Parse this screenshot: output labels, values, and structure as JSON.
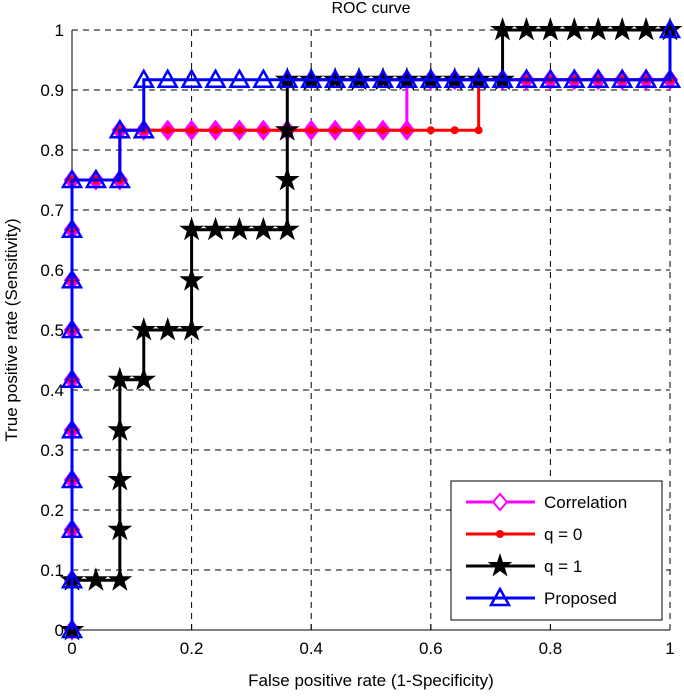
{
  "chart_data": {
    "type": "line",
    "title": "ROC curve",
    "xlabel": "False positive rate (1-Specificity)",
    "ylabel": "True positive rate (Sensitivity)",
    "xlim": [
      0,
      1
    ],
    "ylim": [
      0,
      1
    ],
    "grid": true,
    "legend_position": "bottom-right",
    "x_ticks": [
      0,
      0.2,
      0.4,
      0.6,
      0.8,
      1
    ],
    "x_tick_labels": [
      "0",
      "0.2",
      "0.4",
      "0.6",
      "0.8",
      "1"
    ],
    "y_ticks": [
      0,
      0.1,
      0.2,
      0.3,
      0.4,
      0.5,
      0.6,
      0.7,
      0.8,
      0.9,
      1
    ],
    "y_tick_labels": [
      "0",
      "0.1",
      "0.2",
      "0.3",
      "0.4",
      "0.5",
      "0.6",
      "0.7",
      "0.8",
      "0.9",
      "1"
    ],
    "series": [
      {
        "name": "Correlation",
        "color": "#ff00ff",
        "marker": "diamond",
        "x": [
          0,
          0,
          0,
          0,
          0,
          0,
          0,
          0,
          0,
          0,
          0.04,
          0.08,
          0.08,
          0.12,
          0.16,
          0.2,
          0.24,
          0.28,
          0.32,
          0.36,
          0.4,
          0.44,
          0.48,
          0.52,
          0.56,
          0.56,
          0.6,
          0.64,
          0.68,
          0.72,
          0.76,
          0.8,
          0.84,
          0.88,
          0.92,
          0.96,
          1
        ],
        "y": [
          0,
          0.083,
          0.167,
          0.25,
          0.333,
          0.417,
          0.5,
          0.583,
          0.667,
          0.75,
          0.75,
          0.75,
          0.833,
          0.833,
          0.833,
          0.833,
          0.833,
          0.833,
          0.833,
          0.833,
          0.833,
          0.833,
          0.833,
          0.833,
          0.833,
          0.917,
          0.917,
          0.917,
          0.917,
          0.917,
          0.917,
          0.917,
          0.917,
          0.917,
          0.917,
          0.917,
          0.917
        ]
      },
      {
        "name": "q = 0",
        "color": "#ff0000",
        "marker": "dot",
        "x": [
          0,
          0,
          0,
          0,
          0,
          0,
          0,
          0,
          0,
          0,
          0.04,
          0.08,
          0.08,
          0.12,
          0.16,
          0.2,
          0.24,
          0.28,
          0.32,
          0.36,
          0.4,
          0.44,
          0.48,
          0.52,
          0.56,
          0.6,
          0.64,
          0.68,
          0.68,
          0.72,
          0.76,
          0.8,
          0.84,
          0.88,
          0.92,
          0.96,
          1
        ],
        "y": [
          0,
          0.083,
          0.167,
          0.25,
          0.333,
          0.417,
          0.5,
          0.583,
          0.667,
          0.75,
          0.75,
          0.75,
          0.833,
          0.833,
          0.833,
          0.833,
          0.833,
          0.833,
          0.833,
          0.833,
          0.833,
          0.833,
          0.833,
          0.833,
          0.833,
          0.833,
          0.833,
          0.833,
          0.917,
          0.917,
          0.917,
          0.917,
          0.917,
          0.917,
          0.917,
          0.917,
          0.917
        ]
      },
      {
        "name": "q = 1",
        "color": "#000000",
        "marker": "star",
        "x": [
          0,
          0,
          0.04,
          0.08,
          0.08,
          0.08,
          0.08,
          0.08,
          0.12,
          0.12,
          0.16,
          0.2,
          0.2,
          0.2,
          0.24,
          0.28,
          0.32,
          0.36,
          0.36,
          0.36,
          0.36,
          0.4,
          0.44,
          0.48,
          0.52,
          0.56,
          0.6,
          0.64,
          0.68,
          0.72,
          0.72,
          0.76,
          0.8,
          0.84,
          0.88,
          0.92,
          0.96,
          1
        ],
        "y": [
          0,
          0.083,
          0.083,
          0.083,
          0.167,
          0.25,
          0.333,
          0.417,
          0.417,
          0.5,
          0.5,
          0.5,
          0.583,
          0.667,
          0.667,
          0.667,
          0.667,
          0.667,
          0.75,
          0.833,
          0.917,
          0.917,
          0.917,
          0.917,
          0.917,
          0.917,
          0.917,
          0.917,
          0.917,
          0.917,
          1,
          1,
          1,
          1,
          1,
          1,
          1,
          1
        ]
      },
      {
        "name": "Proposed",
        "color": "#0000ff",
        "marker": "triangle",
        "x": [
          0,
          0,
          0,
          0,
          0,
          0,
          0,
          0,
          0,
          0,
          0.04,
          0.08,
          0.08,
          0.12,
          0.12,
          0.16,
          0.2,
          0.24,
          0.28,
          0.32,
          0.36,
          0.4,
          0.44,
          0.48,
          0.52,
          0.56,
          0.6,
          0.64,
          0.68,
          0.72,
          0.76,
          0.8,
          0.84,
          0.88,
          0.92,
          0.96,
          1,
          1
        ],
        "y": [
          0,
          0.083,
          0.167,
          0.25,
          0.333,
          0.417,
          0.5,
          0.583,
          0.667,
          0.75,
          0.75,
          0.75,
          0.833,
          0.833,
          0.917,
          0.917,
          0.917,
          0.917,
          0.917,
          0.917,
          0.917,
          0.917,
          0.917,
          0.917,
          0.917,
          0.917,
          0.917,
          0.917,
          0.917,
          0.917,
          0.917,
          0.917,
          0.917,
          0.917,
          0.917,
          0.917,
          0.917,
          1
        ]
      }
    ]
  }
}
